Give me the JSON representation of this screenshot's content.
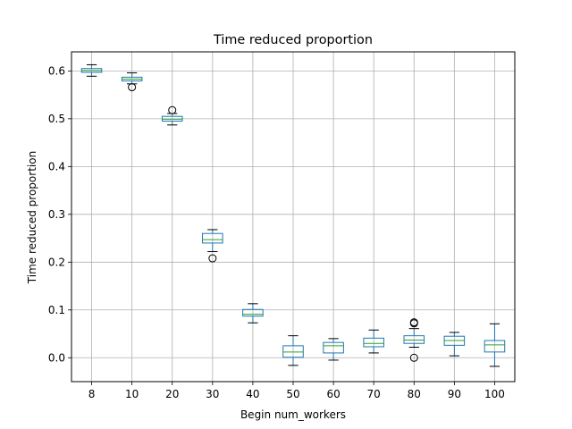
{
  "chart_data": {
    "type": "box",
    "title": "Time reduced proportion",
    "xlabel": "Begin num_workers",
    "ylabel": "Time reduced proportion",
    "ylim": [
      -0.05,
      0.64
    ],
    "yticks": [
      0.0,
      0.1,
      0.2,
      0.3,
      0.4,
      0.5,
      0.6
    ],
    "ytick_labels": [
      "0.0",
      "0.1",
      "0.2",
      "0.3",
      "0.4",
      "0.5",
      "0.6"
    ],
    "grid": true,
    "categories": [
      "8",
      "10",
      "20",
      "30",
      "40",
      "50",
      "60",
      "70",
      "80",
      "90",
      "100"
    ],
    "boxes": [
      {
        "category": "8",
        "whisker_low": 0.589,
        "q1": 0.597,
        "median": 0.601,
        "q3": 0.605,
        "whisker_high": 0.613,
        "outliers": []
      },
      {
        "category": "10",
        "whisker_low": 0.573,
        "q1": 0.579,
        "median": 0.583,
        "q3": 0.587,
        "whisker_high": 0.596,
        "outliers": [
          0.566
        ]
      },
      {
        "category": "20",
        "whisker_low": 0.487,
        "q1": 0.495,
        "median": 0.499,
        "q3": 0.505,
        "whisker_high": 0.511,
        "outliers": [
          0.518
        ]
      },
      {
        "category": "30",
        "whisker_low": 0.222,
        "q1": 0.24,
        "median": 0.247,
        "q3": 0.26,
        "whisker_high": 0.268,
        "outliers": [
          0.208
        ]
      },
      {
        "category": "40",
        "whisker_low": 0.073,
        "q1": 0.087,
        "median": 0.091,
        "q3": 0.101,
        "whisker_high": 0.113,
        "outliers": []
      },
      {
        "category": "50",
        "whisker_low": -0.016,
        "q1": 0.001,
        "median": 0.012,
        "q3": 0.025,
        "whisker_high": 0.046,
        "outliers": []
      },
      {
        "category": "60",
        "whisker_low": -0.005,
        "q1": 0.01,
        "median": 0.025,
        "q3": 0.032,
        "whisker_high": 0.04,
        "outliers": []
      },
      {
        "category": "70",
        "whisker_low": 0.01,
        "q1": 0.023,
        "median": 0.03,
        "q3": 0.041,
        "whisker_high": 0.058,
        "outliers": []
      },
      {
        "category": "80",
        "whisker_low": 0.022,
        "q1": 0.03,
        "median": 0.037,
        "q3": 0.046,
        "whisker_high": 0.061,
        "outliers": [
          0.074,
          0.072,
          0.0
        ]
      },
      {
        "category": "90",
        "whisker_low": 0.004,
        "q1": 0.026,
        "median": 0.036,
        "q3": 0.045,
        "whisker_high": 0.053,
        "outliers": []
      },
      {
        "category": "100",
        "whisker_low": -0.018,
        "q1": 0.012,
        "median": 0.027,
        "q3": 0.036,
        "whisker_high": 0.071,
        "outliers": []
      }
    ],
    "colors": {
      "box": "#1f77b4",
      "median": "#2ca02c",
      "whisker": "#000000",
      "grid": "#b0b0b0",
      "outlier": "#000000"
    }
  }
}
